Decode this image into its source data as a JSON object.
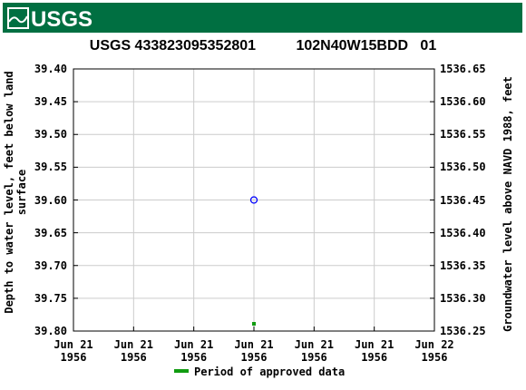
{
  "header": {
    "logo": "USGS"
  },
  "chart_data": {
    "type": "scatter",
    "title": "USGS 433823095352801          102N40W15BDD   01",
    "y_label": "Depth to water level, feet below land surface",
    "y2_label": "Groundwater level above NAVD 1988, feet",
    "xlim": [
      0,
      24
    ],
    "xticks": [
      {
        "value": 0,
        "label": "Jun 21\n1956"
      },
      {
        "value": 4,
        "label": "Jun 21\n1956"
      },
      {
        "value": 8,
        "label": "Jun 21\n1956"
      },
      {
        "value": 12,
        "label": "Jun 21\n1956"
      },
      {
        "value": 16,
        "label": "Jun 21\n1956"
      },
      {
        "value": 20,
        "label": "Jun 21\n1956"
      },
      {
        "value": 24,
        "label": "Jun 22\n1956"
      }
    ],
    "ylim": [
      39.4,
      39.8
    ],
    "yticks": [
      {
        "value": 39.4,
        "label": "39.40"
      },
      {
        "value": 39.45,
        "label": "39.45"
      },
      {
        "value": 39.5,
        "label": "39.50"
      },
      {
        "value": 39.55,
        "label": "39.55"
      },
      {
        "value": 39.6,
        "label": "39.60"
      },
      {
        "value": 39.65,
        "label": "39.65"
      },
      {
        "value": 39.7,
        "label": "39.70"
      },
      {
        "value": 39.75,
        "label": "39.75"
      },
      {
        "value": 39.8,
        "label": "39.80"
      }
    ],
    "y2lim": [
      1536.65,
      1536.25
    ],
    "y2ticks": [
      {
        "value": 1536.65,
        "label": "1536.65"
      },
      {
        "value": 1536.6,
        "label": "1536.60"
      },
      {
        "value": 1536.55,
        "label": "1536.55"
      },
      {
        "value": 1536.5,
        "label": "1536.50"
      },
      {
        "value": 1536.45,
        "label": "1536.45"
      },
      {
        "value": 1536.4,
        "label": "1536.40"
      },
      {
        "value": 1536.35,
        "label": "1536.35"
      },
      {
        "value": 1536.3,
        "label": "1536.30"
      },
      {
        "value": 1536.25,
        "label": "1536.25"
      }
    ],
    "grid": true,
    "series": [
      {
        "x": [
          12
        ],
        "values": [
          39.6
        ],
        "color": "#0000ff"
      }
    ],
    "approved": {
      "name": "Period of approved data",
      "color": "#119c11",
      "x": [
        12
      ]
    }
  }
}
